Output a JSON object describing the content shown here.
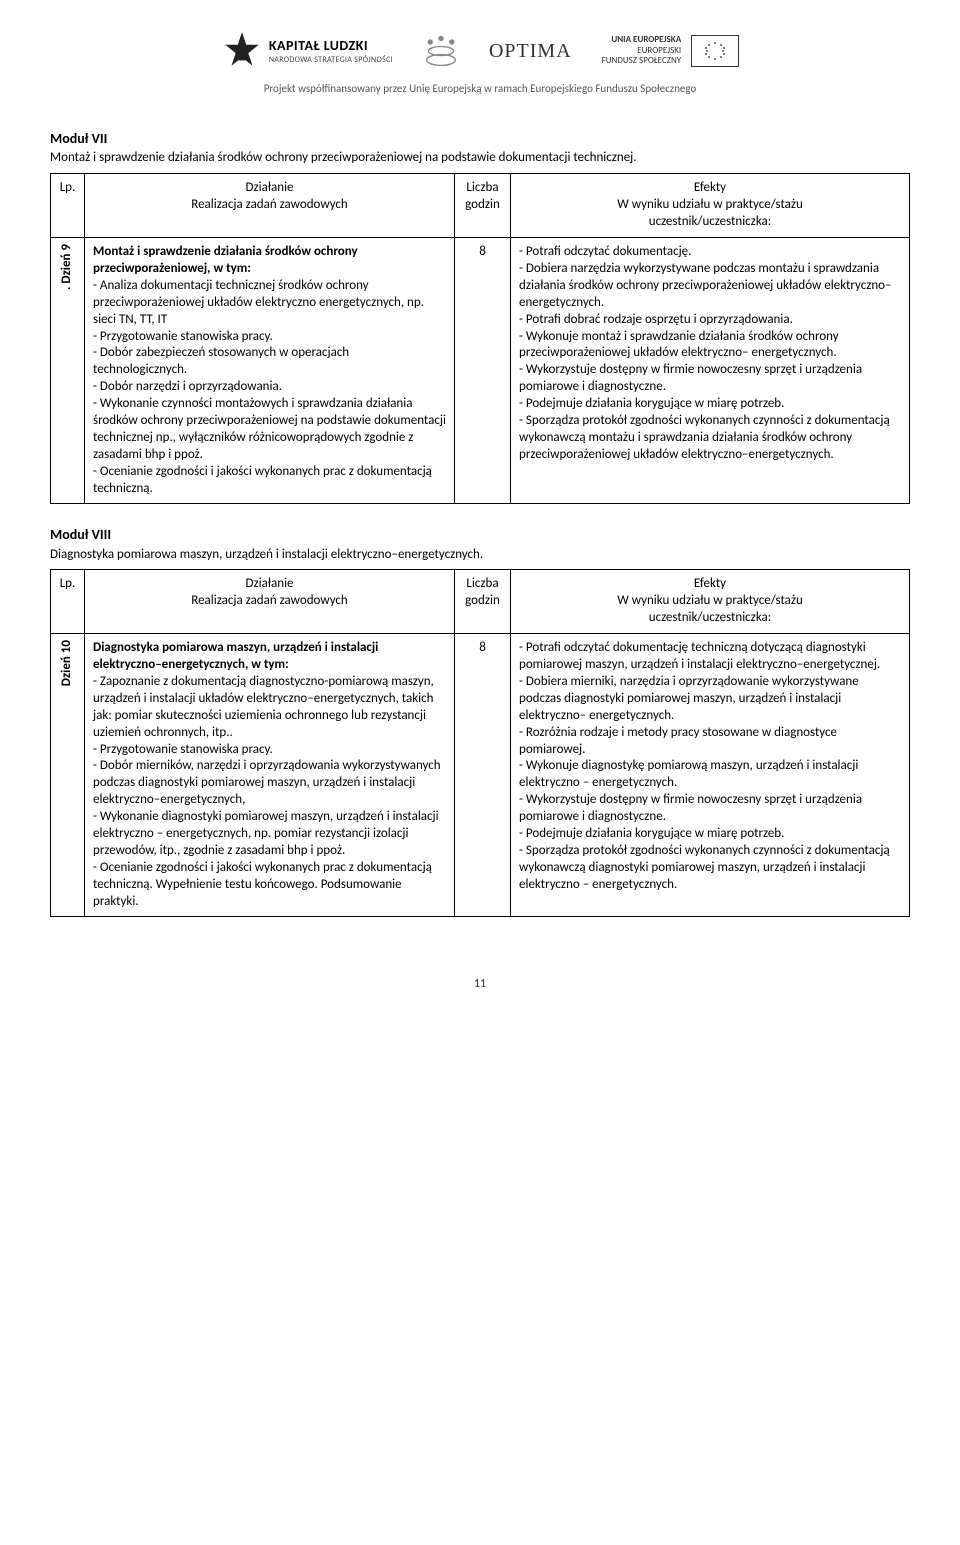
{
  "header": {
    "kl_title": "KAPITAŁ LUDZKI",
    "kl_sub": "NARODOWA STRATEGIA SPÓJNOŚCI",
    "optima": "OPTIMA",
    "eu_line1": "UNIA EUROPEJSKA",
    "eu_line2": "EUROPEJSKI",
    "eu_line3": "FUNDUSZ SPOŁECZNY",
    "project_line": "Projekt współfinansowany przez Unię Europejską w ramach Europejskiego Funduszu Społecznego"
  },
  "table_headers": {
    "lp": "Lp.",
    "dzialanie": "Działanie",
    "realizacja": "Realizacja zadań zawodowych",
    "liczba": "Liczba",
    "godzin": "godzin",
    "efekty": "Efekty",
    "wwyniku": "W wyniku udziału w praktyce/stażu",
    "uczestnik": "uczestnik/uczestniczka:"
  },
  "module7": {
    "title": "Moduł VII",
    "desc": "Montaż i sprawdzenie działania środków ochrony przeciwporażeniowej na podstawie dokumentacji technicznej.",
    "day_label": ". Dzień 9",
    "hours": "8",
    "activity_bold": "Montaż i sprawdzenie działania środków ochrony przeciwporażeniowej,  w tym:",
    "activity_items": [
      "- Analiza dokumentacji technicznej środków ochrony przeciwporażeniowej układów elektryczno energetycznych, np. sieci TN, TT, IT",
      " - Przygotowanie stanowiska pracy.",
      "- Dobór zabezpieczeń stosowanych w operacjach technologicznych.",
      "- Dobór narzędzi i oprzyrządowania.",
      "- Wykonanie czynności montażowych i sprawdzania działania środków ochrony przeciwporażeniowej na podstawie dokumentacji technicznej np., wyłączników różnicowoprądowych zgodnie z zasadami bhp i ppoż.",
      "- Ocenianie zgodności i jakości wykonanych prac z dokumentacją techniczną."
    ],
    "effects": [
      "- Potrafi odczytać dokumentację.",
      "- Dobiera narzędzia wykorzystywane  podczas montażu i sprawdzania działania środków ochrony przeciwporażeniowej układów elektryczno– energetycznych.",
      "- Potrafi dobrać rodzaje osprzętu i oprzyrządowania.",
      "- Wykonuje montaż i sprawdzanie działania środków ochrony przeciwporażeniowej układów elektryczno– energetycznych.",
      "- Wykorzystuje dostępny w firmie  nowoczesny sprzęt i urządzenia pomiarowe i diagnostyczne.",
      "- Podejmuje działania korygujące w miarę potrzeb.",
      "- Sporządza protokół zgodności wykonanych czynności z dokumentacją wykonawczą montażu i sprawdzania działania środków ochrony przeciwporażeniowej układów elektryczno–energetycznych."
    ]
  },
  "module8": {
    "title": "Moduł VIII",
    "desc": "Diagnostyka pomiarowa maszyn, urządzeń i instalacji elektryczno–energetycznych.",
    "day_label": "Dzień 10",
    "hours": "8",
    "activity_bold": "Diagnostyka pomiarowa maszyn, urządzeń i instalacji elektryczno–energetycznych, w tym:",
    "activity_items": [
      "- Zapoznanie z dokumentacją diagnostyczno-pomiarową maszyn, urządzeń i instalacji układów elektryczno–energetycznych, takich jak: pomiar skuteczności uziemienia ochronnego lub rezystancji uziemień ochronnych, itp..",
      " - Przygotowanie stanowiska pracy.",
      "- Dobór mierników, narzędzi i oprzyrządowania wykorzystywanych podczas diagnostyki pomiarowej maszyn, urządzeń i instalacji elektryczno–energetycznych,",
      "- Wykonanie diagnostyki pomiarowej maszyn, urządzeń i instalacji elektryczno – energetycznych, np. pomiar rezystancji izolacji przewodów, itp., zgodnie z zasadami bhp i ppoż.",
      "- Ocenianie zgodności i jakości wykonanych prac z dokumentacją techniczną. Wypełnienie testu końcowego. Podsumowanie praktyki."
    ],
    "effects": [
      "- Potrafi odczytać dokumentację techniczną dotyczącą diagnostyki pomiarowej maszyn, urządzeń i instalacji elektryczno–energetycznej.",
      "- Dobiera mierniki, narzędzia i oprzyrządowanie wykorzystywane podczas diagnostyki pomiarowej maszyn, urządzeń i instalacji elektryczno– energetycznych.",
      "- Rozróżnia rodzaje i metody pracy stosowane w diagnostyce pomiarowej.",
      "- Wykonuje diagnostykę pomiarową maszyn, urządzeń i instalacji elektryczno – energetycznych.",
      "- Wykorzystuje dostępny w firmie nowoczesny sprzęt i urządzenia pomiarowe i diagnostyczne.",
      "- Podejmuje działania korygujące w miarę potrzeb.",
      "- Sporządza protokół zgodności wykonanych czynności z dokumentacją wykonawczą diagnostyki pomiarowej maszyn, urządzeń i instalacji elektryczno – energetycznych."
    ]
  },
  "page_number": "11"
}
